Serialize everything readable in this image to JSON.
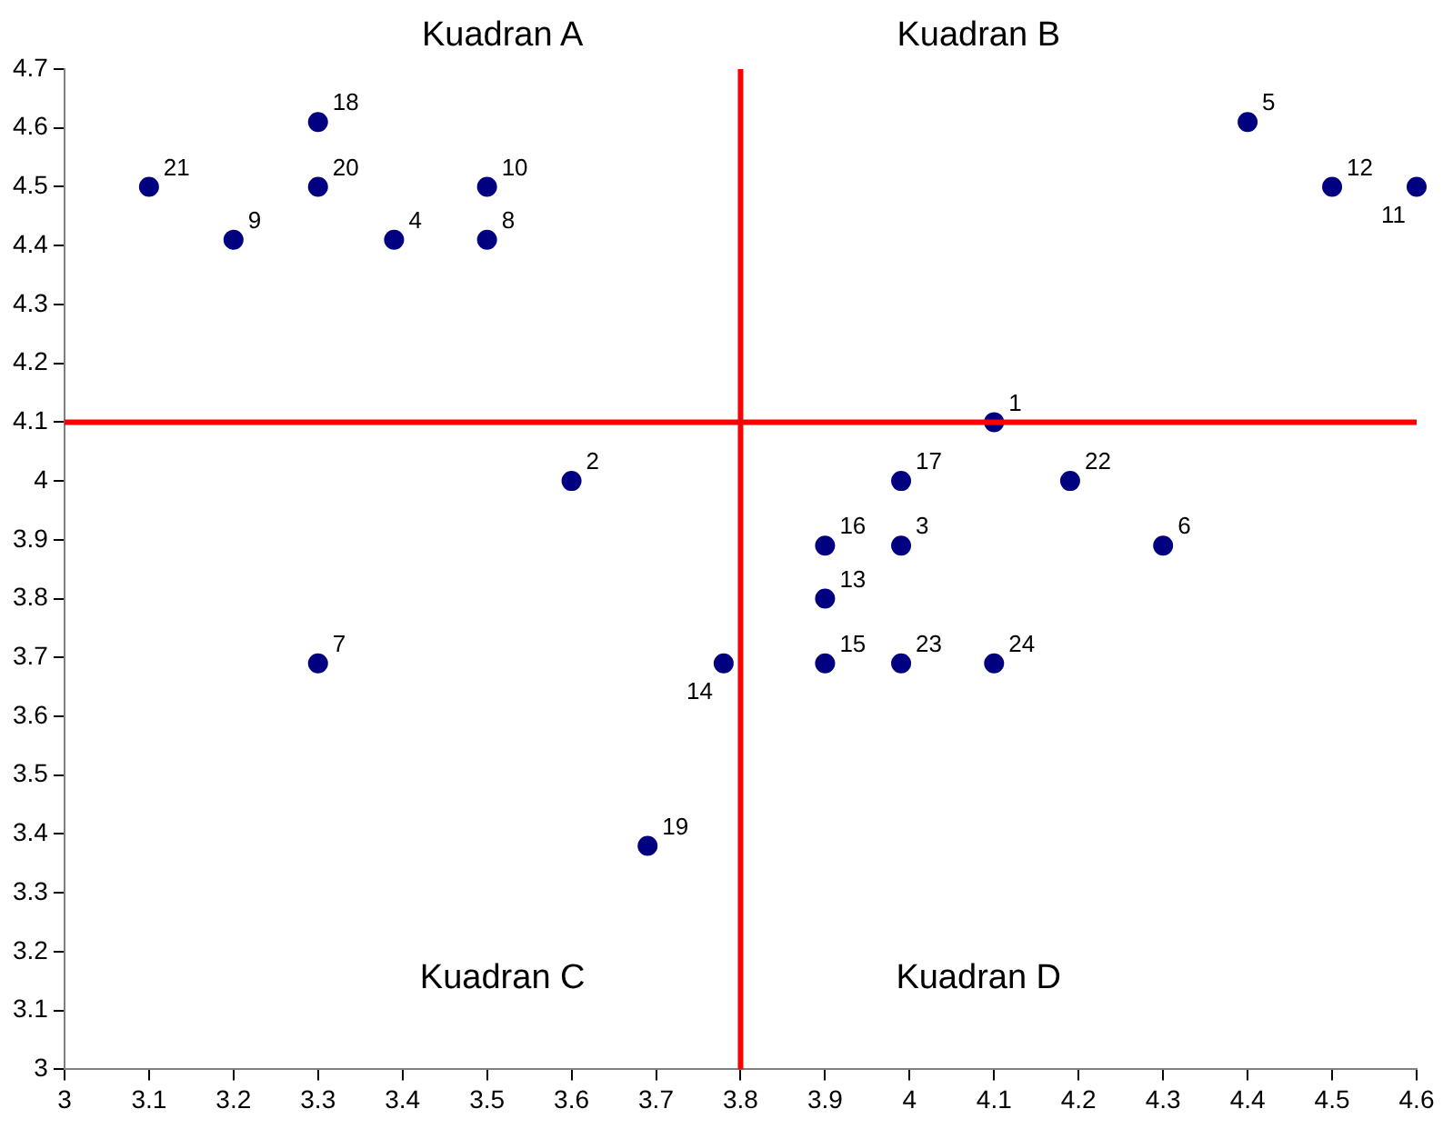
{
  "chart_data": {
    "type": "scatter",
    "x": [
      4.1,
      3.6,
      3.99,
      3.39,
      4.4,
      4.3,
      3.3,
      3.5,
      3.2,
      3.5,
      4.6,
      4.5,
      3.9,
      3.78,
      3.9,
      3.9,
      3.99,
      3.3,
      3.69,
      3.3,
      3.1,
      4.19,
      3.99,
      4.1
    ],
    "values": [
      4.1,
      4.0,
      3.89,
      4.41,
      4.61,
      3.89,
      3.69,
      4.41,
      4.41,
      4.5,
      4.5,
      4.5,
      3.8,
      3.69,
      3.69,
      3.89,
      4.0,
      4.61,
      3.38,
      4.5,
      4.5,
      4.0,
      3.69,
      3.69
    ],
    "color": "#000080",
    "marker": "circle",
    "xlim": [
      3,
      4.6
    ],
    "xticks": [
      3,
      3.1,
      3.2,
      3.3,
      3.4,
      3.5,
      3.6,
      3.7,
      3.8,
      3.9,
      4,
      4.1,
      4.2,
      4.3,
      4.4,
      4.5,
      4.6
    ],
    "ylim": [
      3,
      4.7
    ],
    "yticks": [
      3,
      3.1,
      3.2,
      3.3,
      3.4,
      3.5,
      3.6,
      3.7,
      3.8,
      3.9,
      4,
      4.1,
      4.2,
      4.3,
      4.4,
      4.5,
      4.6,
      4.7
    ],
    "grid": false,
    "legend": false,
    "ref_lines": [
      {
        "axis": "x",
        "value": 3.8,
        "color": "#ff0000"
      },
      {
        "axis": "y",
        "value": 4.1,
        "color": "#ff0000"
      }
    ],
    "annotations": [
      "Kuadran A",
      "Kuadran B",
      "Kuadran C",
      "Kuadran D",
      {
        "text": "1",
        "x": 4.1,
        "y": 4.1
      },
      {
        "text": "2",
        "x": 3.6,
        "y": 4.0
      },
      {
        "text": "3",
        "x": 3.99,
        "y": 3.89
      },
      {
        "text": "4",
        "x": 3.39,
        "y": 4.41
      },
      {
        "text": "5",
        "x": 4.4,
        "y": 4.61
      },
      {
        "text": "6",
        "x": 4.3,
        "y": 3.89
      },
      {
        "text": "7",
        "x": 3.3,
        "y": 3.69
      },
      {
        "text": "8",
        "x": 3.5,
        "y": 4.41
      },
      {
        "text": "9",
        "x": 3.2,
        "y": 4.41
      },
      {
        "text": "10",
        "x": 3.5,
        "y": 4.5
      },
      {
        "text": "11",
        "x": 4.6,
        "y": 4.5
      },
      {
        "text": "12",
        "x": 4.5,
        "y": 4.5
      },
      {
        "text": "13",
        "x": 3.9,
        "y": 3.8
      },
      {
        "text": "14",
        "x": 3.78,
        "y": 3.69
      },
      {
        "text": "15",
        "x": 3.9,
        "y": 3.69
      },
      {
        "text": "16",
        "x": 3.9,
        "y": 3.89
      },
      {
        "text": "17",
        "x": 3.99,
        "y": 4.0
      },
      {
        "text": "18",
        "x": 3.3,
        "y": 4.61
      },
      {
        "text": "19",
        "x": 3.69,
        "y": 3.38
      },
      {
        "text": "20",
        "x": 3.3,
        "y": 4.5
      },
      {
        "text": "21",
        "x": 3.1,
        "y": 4.5
      },
      {
        "text": "22",
        "x": 4.19,
        "y": 4.0
      },
      {
        "text": "23",
        "x": 3.99,
        "y": 3.69
      },
      {
        "text": "24",
        "x": 4.1,
        "y": 3.69
      }
    ]
  }
}
